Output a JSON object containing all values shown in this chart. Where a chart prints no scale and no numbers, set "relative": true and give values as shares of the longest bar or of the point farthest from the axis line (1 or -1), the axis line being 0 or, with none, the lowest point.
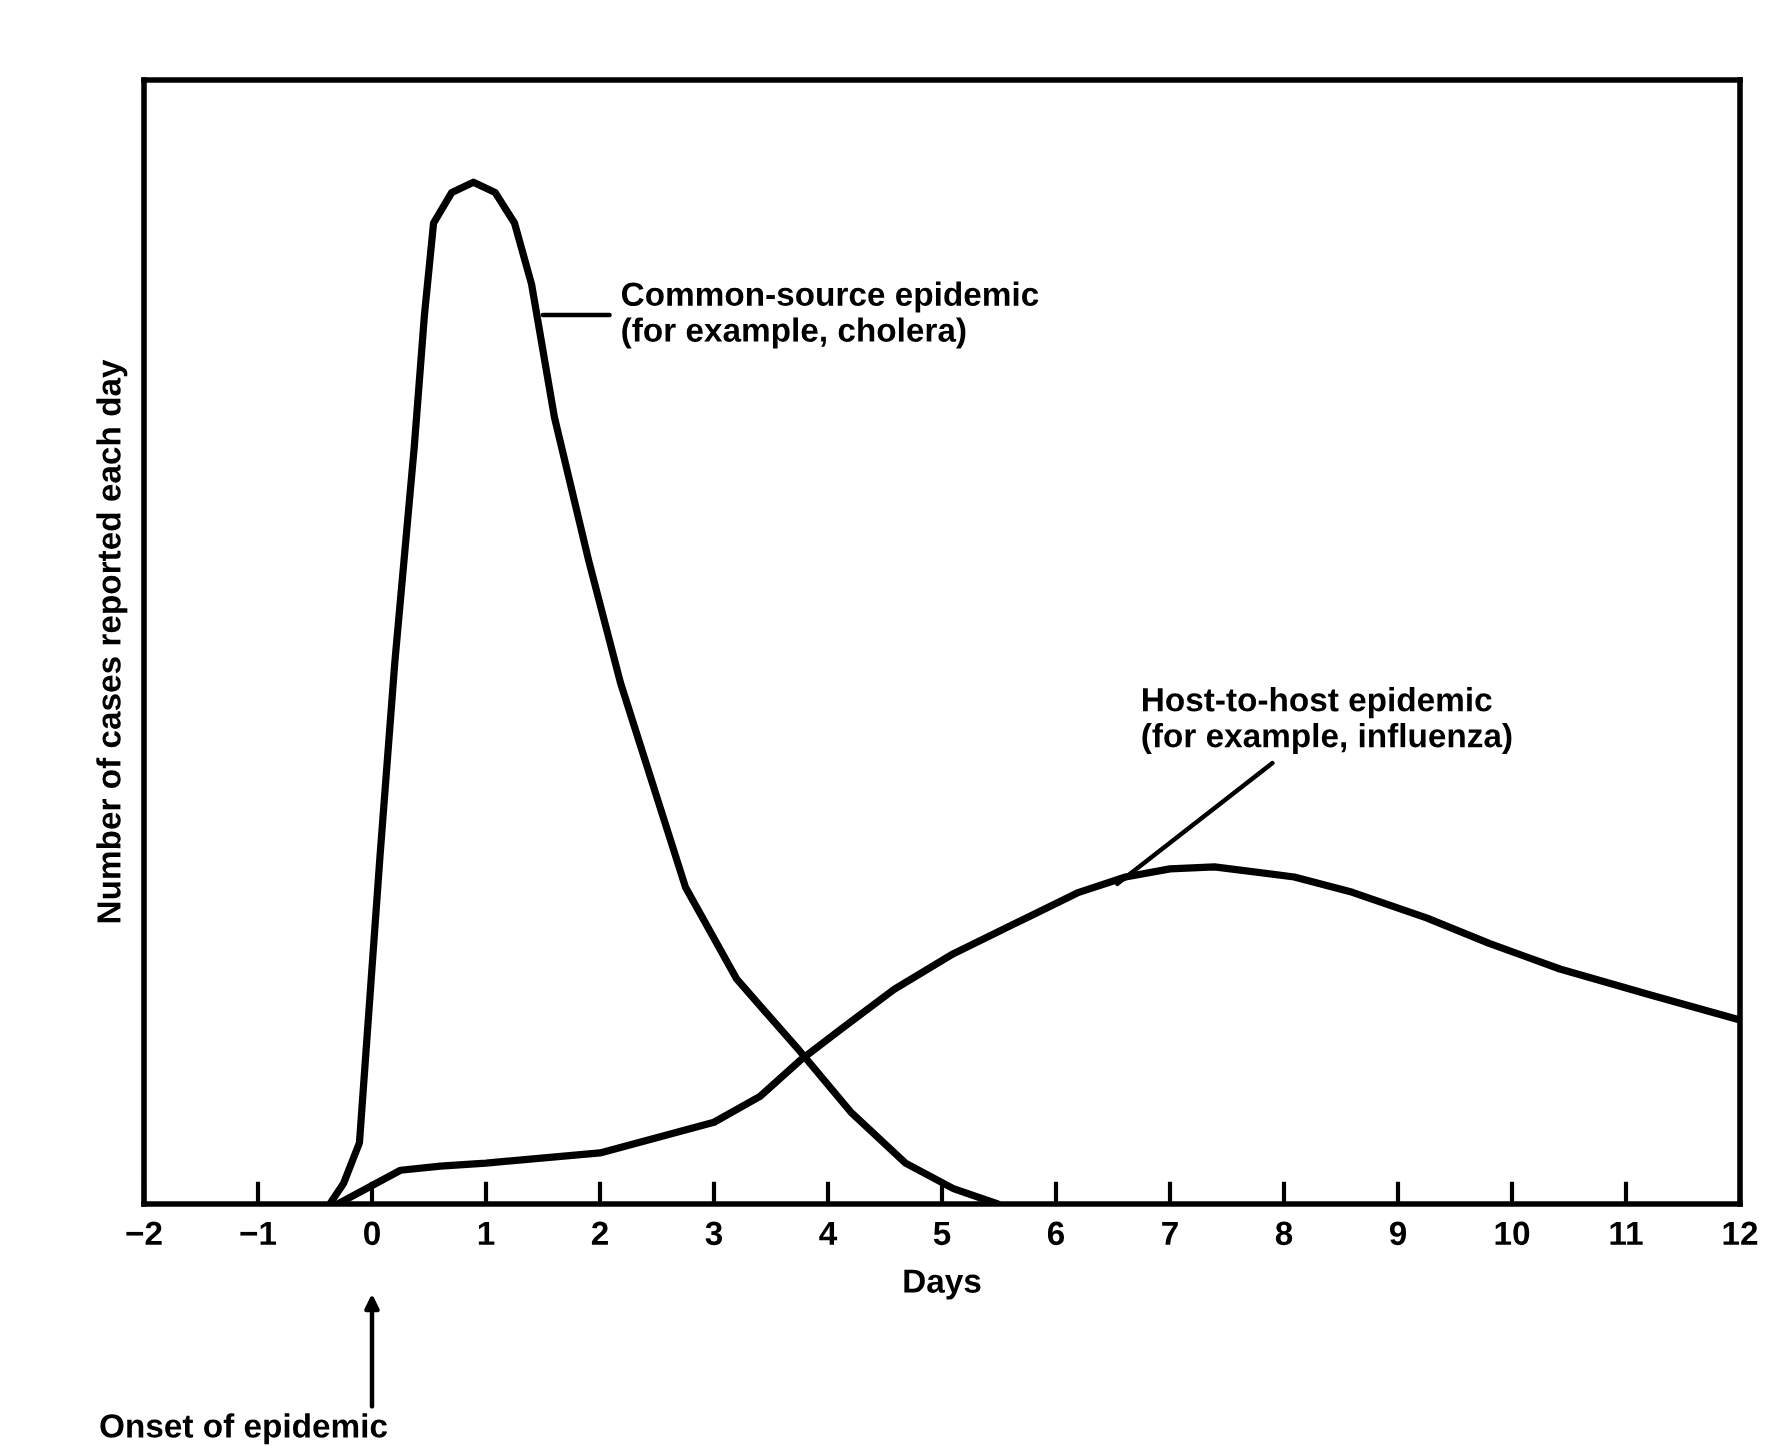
{
  "chart_data": {
    "type": "line",
    "relative": true,
    "xlabel": "Days",
    "ylabel": "Number of cases reported each day",
    "xlim": [
      -2,
      12
    ],
    "xticks": [
      {
        "value": -2,
        "label": "−2"
      },
      {
        "value": -1,
        "label": "−1"
      },
      0,
      1,
      2,
      3,
      4,
      5,
      6,
      7,
      8,
      9,
      10,
      11,
      12
    ],
    "series": [
      {
        "color": "#000000",
        "x": [
          -0.37,
          -0.25,
          -0.11,
          0.07,
          0.2,
          0.37,
          0.46,
          0.54,
          0.7,
          0.89,
          1.08,
          1.25,
          1.4,
          1.6,
          1.9,
          2.18,
          2.75,
          3.2,
          3.75,
          4.2,
          4.68,
          5.1,
          5.49
        ],
        "values": [
          0,
          0.02,
          0.06,
          0.34,
          0.53,
          0.74,
          0.87,
          0.96,
          0.99,
          1.0,
          0.99,
          0.96,
          0.9,
          0.77,
          0.63,
          0.51,
          0.31,
          0.22,
          0.15,
          0.09,
          0.04,
          0.015,
          0
        ]
      },
      {
        "color": "#000000",
        "x": [
          -0.3,
          0.25,
          0.6,
          1,
          2,
          3,
          3.4,
          3.75,
          4.1,
          4.58,
          5.1,
          5.74,
          6.2,
          6.61,
          7.0,
          7.39,
          8.09,
          8.6,
          9.25,
          9.8,
          10.42,
          11.2,
          12
        ],
        "values": [
          0,
          0.033,
          0.037,
          0.04,
          0.05,
          0.08,
          0.105,
          0.14,
          0.17,
          0.21,
          0.245,
          0.28,
          0.305,
          0.32,
          0.328,
          0.33,
          0.32,
          0.305,
          0.28,
          0.255,
          0.23,
          0.205,
          0.18
        ]
      }
    ],
    "annotations": [
      {
        "text": "Common-source epidemic\n(for example, cholera)",
        "x": 1.45,
        "y": 0.87
      },
      {
        "text": "Host-to-host epidemic\n(for example, influenza)",
        "x": 6.5,
        "y": 0.31
      },
      "Onset of epidemic"
    ],
    "grid": false,
    "marker": "none",
    "line_style": "solid"
  }
}
